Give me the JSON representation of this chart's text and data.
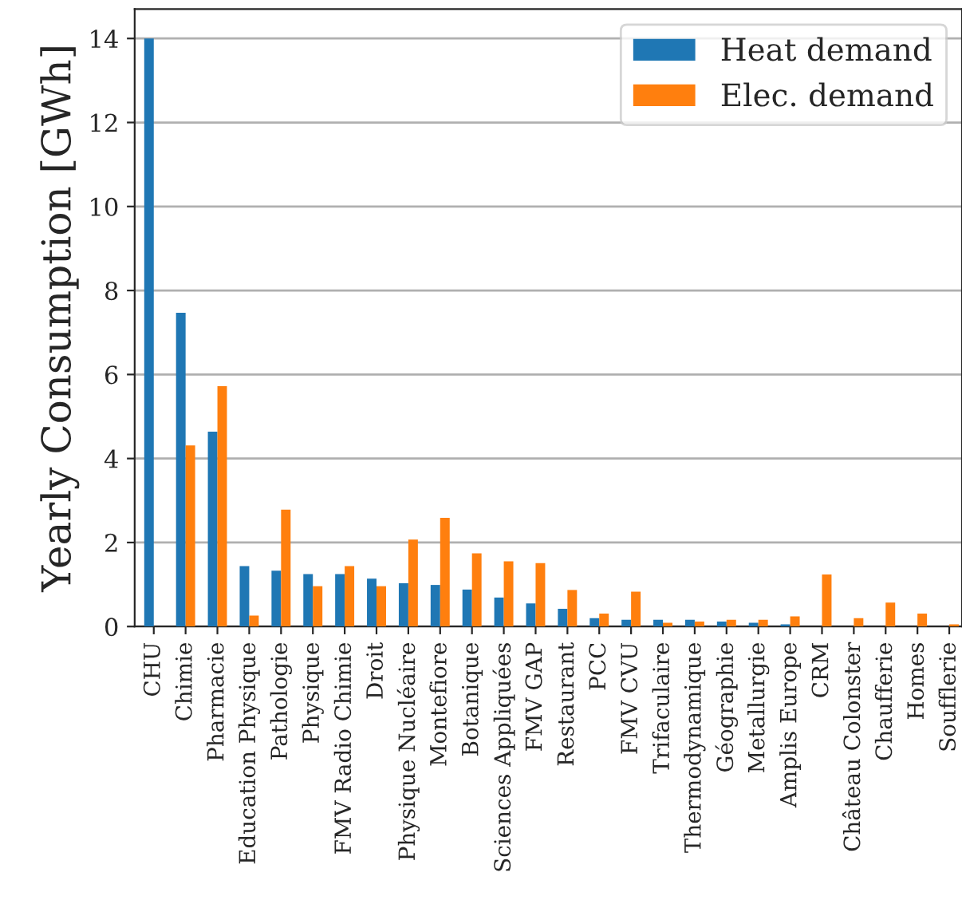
{
  "chart_data": {
    "type": "bar",
    "ylabel": "Yearly Consumption [GWh]",
    "categories": [
      "CHU",
      "Chimie",
      "Pharmacie",
      "Education Physique",
      "Pathologie",
      "Physique",
      "FMV Radio Chimie",
      "Droit",
      "Physique Nucléaire",
      "Montefiore",
      "Botanique",
      "Sciences Appliquées",
      "FMV GAP",
      "Restaurant",
      "PCC",
      "FMV CVU",
      "Trifaculaire",
      "Thermodynamique",
      "Géographie",
      "Metallurgie",
      "Amplis Europe",
      "CRM",
      "Château Colonster",
      "Chaufferie",
      "Homes",
      "Soufflerie"
    ],
    "series": [
      {
        "name": "Heat demand",
        "color": "#1f77b4",
        "values": [
          14.0,
          7.47,
          4.64,
          1.44,
          1.33,
          1.25,
          1.25,
          1.14,
          1.03,
          0.99,
          0.88,
          0.69,
          0.55,
          0.42,
          0.2,
          0.16,
          0.16,
          0.16,
          0.12,
          0.09,
          0.05,
          0,
          0,
          0,
          0,
          0
        ]
      },
      {
        "name": "Elec. demand",
        "color": "#ff7f0e",
        "values": [
          0,
          4.31,
          5.72,
          0.26,
          2.78,
          0.96,
          1.44,
          0.96,
          2.07,
          2.59,
          1.74,
          1.55,
          1.51,
          0.87,
          0.31,
          0.83,
          0.09,
          0.12,
          0.16,
          0.16,
          0.24,
          1.24,
          0.2,
          0.57,
          0.31,
          0.05
        ]
      }
    ],
    "ylim": [
      0,
      14.7
    ],
    "yticks": [
      0,
      2,
      4,
      6,
      8,
      10,
      12,
      14
    ],
    "grid": "y",
    "legend": "top right"
  }
}
